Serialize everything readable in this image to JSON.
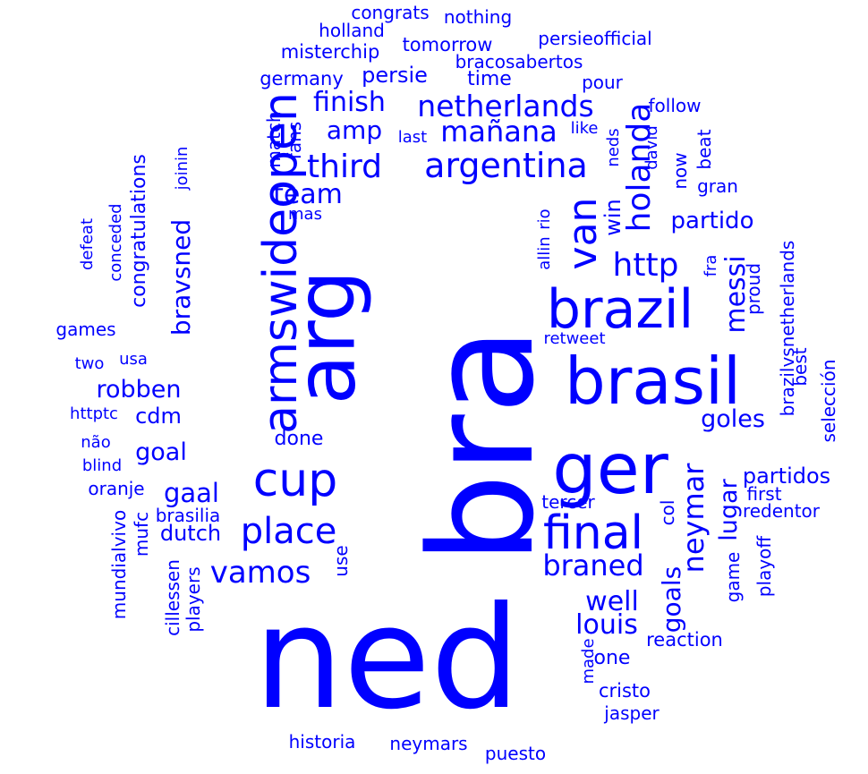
{
  "color": "#0000ff",
  "background": "#ffffff",
  "words": [
    {
      "text": "bra",
      "rotated": true
    },
    {
      "text": "ned",
      "rotated": false
    },
    {
      "text": "arg",
      "rotated": true
    },
    {
      "text": "armswideopen",
      "rotated": true
    },
    {
      "text": "brasil",
      "rotated": false
    },
    {
      "text": "brazil",
      "rotated": false
    },
    {
      "text": "ger",
      "rotated": false
    },
    {
      "text": "final",
      "rotated": false
    },
    {
      "text": "cup",
      "rotated": false
    },
    {
      "text": "argentina",
      "rotated": false
    },
    {
      "text": "place",
      "rotated": false
    },
    {
      "text": "van",
      "rotated": true
    },
    {
      "text": "netherlands",
      "rotated": false
    },
    {
      "text": "holanda",
      "rotated": true
    },
    {
      "text": "braned",
      "rotated": false
    },
    {
      "text": "vamos",
      "rotated": false
    },
    {
      "text": "http",
      "rotated": false
    },
    {
      "text": "third",
      "rotated": false
    },
    {
      "text": "neymar",
      "rotated": true
    },
    {
      "text": "mañana",
      "rotated": false
    },
    {
      "text": "team",
      "rotated": false
    },
    {
      "text": "bravsned",
      "rotated": true
    },
    {
      "text": "well",
      "rotated": false
    },
    {
      "text": "messi",
      "rotated": true
    },
    {
      "text": "louis",
      "rotated": false
    },
    {
      "text": "finish",
      "rotated": false
    },
    {
      "text": "robben",
      "rotated": false
    },
    {
      "text": "amp",
      "rotated": false
    },
    {
      "text": "gaal",
      "rotated": false
    },
    {
      "text": "goal",
      "rotated": false
    },
    {
      "text": "goals",
      "rotated": true
    },
    {
      "text": "partido",
      "rotated": false
    },
    {
      "text": "goles",
      "rotated": false
    },
    {
      "text": "lugar",
      "rotated": true
    },
    {
      "text": "congratulations",
      "rotated": true
    },
    {
      "text": "dutch",
      "rotated": false
    },
    {
      "text": "cdm",
      "rotated": false
    },
    {
      "text": "persie",
      "rotated": false
    },
    {
      "text": "time",
      "rotated": false
    },
    {
      "text": "done",
      "rotated": false
    },
    {
      "text": "win",
      "rotated": true
    },
    {
      "text": "partidos",
      "rotated": false
    },
    {
      "text": "one",
      "rotated": false
    },
    {
      "text": "reaction",
      "rotated": false
    },
    {
      "text": "cristo",
      "rotated": false
    },
    {
      "text": "tomorrow",
      "rotated": false
    },
    {
      "text": "misterchip",
      "rotated": false
    },
    {
      "text": "germany",
      "rotated": false
    },
    {
      "text": "bracosabertos",
      "rotated": false
    },
    {
      "text": "persieofficial",
      "rotated": false
    },
    {
      "text": "pour",
      "rotated": false
    },
    {
      "text": "follow",
      "rotated": false
    },
    {
      "text": "nothing",
      "rotated": false
    },
    {
      "text": "congrats",
      "rotated": false
    },
    {
      "text": "holland",
      "rotated": false
    },
    {
      "text": "match",
      "rotated": true
    },
    {
      "text": "fans",
      "rotated": true
    },
    {
      "text": "last",
      "rotated": false
    },
    {
      "text": "like",
      "rotated": false
    },
    {
      "text": "neds",
      "rotated": true
    },
    {
      "text": "david",
      "rotated": true
    },
    {
      "text": "beat",
      "rotated": true
    },
    {
      "text": "now",
      "rotated": true
    },
    {
      "text": "gran",
      "rotated": false
    },
    {
      "text": "joinin",
      "rotated": true
    },
    {
      "text": "mas",
      "rotated": false
    },
    {
      "text": "conceded",
      "rotated": true
    },
    {
      "text": "defeat",
      "rotated": true
    },
    {
      "text": "games",
      "rotated": false
    },
    {
      "text": "usa",
      "rotated": false
    },
    {
      "text": "two",
      "rotated": false
    },
    {
      "text": "httptc",
      "rotated": false
    },
    {
      "text": "não",
      "rotated": false
    },
    {
      "text": "blind",
      "rotated": false
    },
    {
      "text": "oranje",
      "rotated": false
    },
    {
      "text": "brasilia",
      "rotated": false
    },
    {
      "text": "mufc",
      "rotated": true
    },
    {
      "text": "mundialvivo",
      "rotated": true
    },
    {
      "text": "cillessen",
      "rotated": true
    },
    {
      "text": "players",
      "rotated": true
    },
    {
      "text": "use",
      "rotated": true
    },
    {
      "text": "tercer",
      "rotated": false
    },
    {
      "text": "col",
      "rotated": true
    },
    {
      "text": "first",
      "rotated": false
    },
    {
      "text": "redentor",
      "rotated": false
    },
    {
      "text": "game",
      "rotated": true
    },
    {
      "text": "playoff",
      "rotated": true
    },
    {
      "text": "made",
      "rotated": true
    },
    {
      "text": "jasper",
      "rotated": false
    },
    {
      "text": "historia",
      "rotated": false
    },
    {
      "text": "neymars",
      "rotated": false
    },
    {
      "text": "puesto",
      "rotated": false
    },
    {
      "text": "rio",
      "rotated": true
    },
    {
      "text": "allin",
      "rotated": true
    },
    {
      "text": "retweet",
      "rotated": false
    },
    {
      "text": "fra",
      "rotated": true
    },
    {
      "text": "proud",
      "rotated": true
    },
    {
      "text": "brazilvsnetherlands",
      "rotated": true
    },
    {
      "text": "best",
      "rotated": true
    },
    {
      "text": "selección",
      "rotated": true
    }
  ]
}
